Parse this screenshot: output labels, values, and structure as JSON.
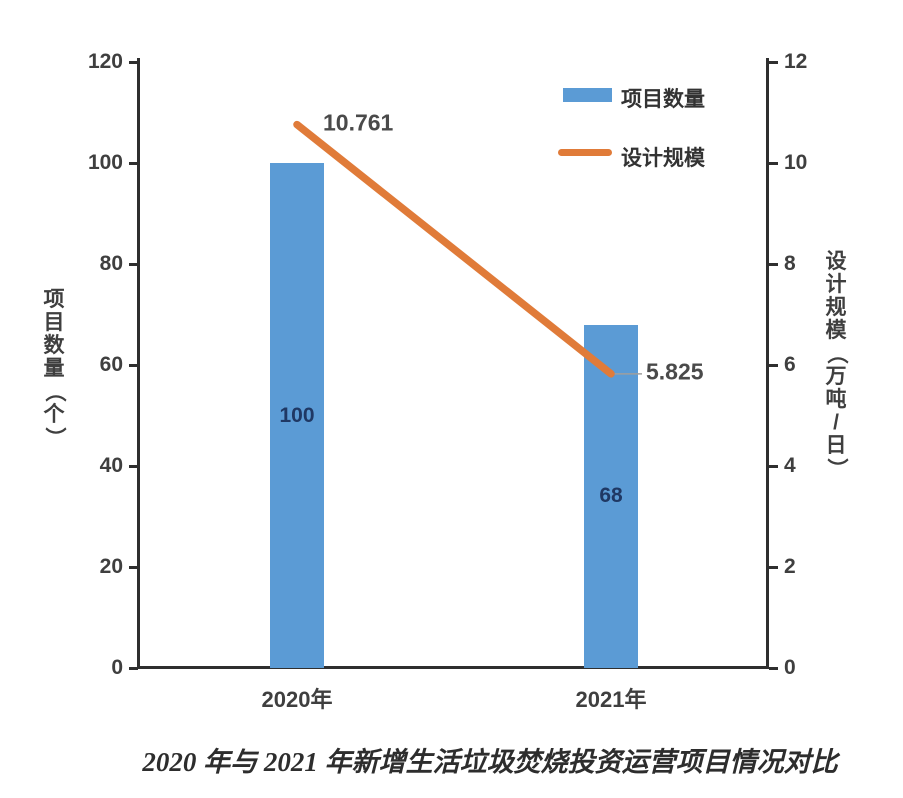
{
  "chart_data": {
    "type": "combo",
    "title": "2020 年与 2021 年新增生活垃圾焚烧投资运营项目情况对比",
    "categories": [
      "2020年",
      "2021年"
    ],
    "series": [
      {
        "name": "项目数量",
        "type": "bar",
        "axis": "left",
        "color": "#5b9bd5",
        "values": [
          100,
          68
        ],
        "labels": [
          "100",
          "68"
        ]
      },
      {
        "name": "设计规模",
        "type": "line",
        "axis": "right",
        "color": "#e07b39",
        "values": [
          10.761,
          5.825
        ],
        "labels": [
          "10.761",
          "5.825"
        ]
      }
    ],
    "left_axis": {
      "title": "项目数量（个）",
      "min": 0,
      "max": 120,
      "ticks": [
        0,
        20,
        40,
        60,
        80,
        100,
        120
      ]
    },
    "right_axis": {
      "title": "设计规模（万吨/日）",
      "min": 0,
      "max": 12,
      "ticks": [
        0,
        2,
        4,
        6,
        8,
        10,
        12
      ]
    },
    "legend": {
      "items": [
        "项目数量",
        "设计规模"
      ],
      "position": "top-right-inside"
    },
    "grid": false
  },
  "colors": {
    "bar": "#5b9bd5",
    "line": "#e07b39",
    "bar_value_label": "#1f3864",
    "data_label": "#4a4a4a",
    "axis": "#2f2f2f",
    "tick_label": "#3f3f3f"
  }
}
